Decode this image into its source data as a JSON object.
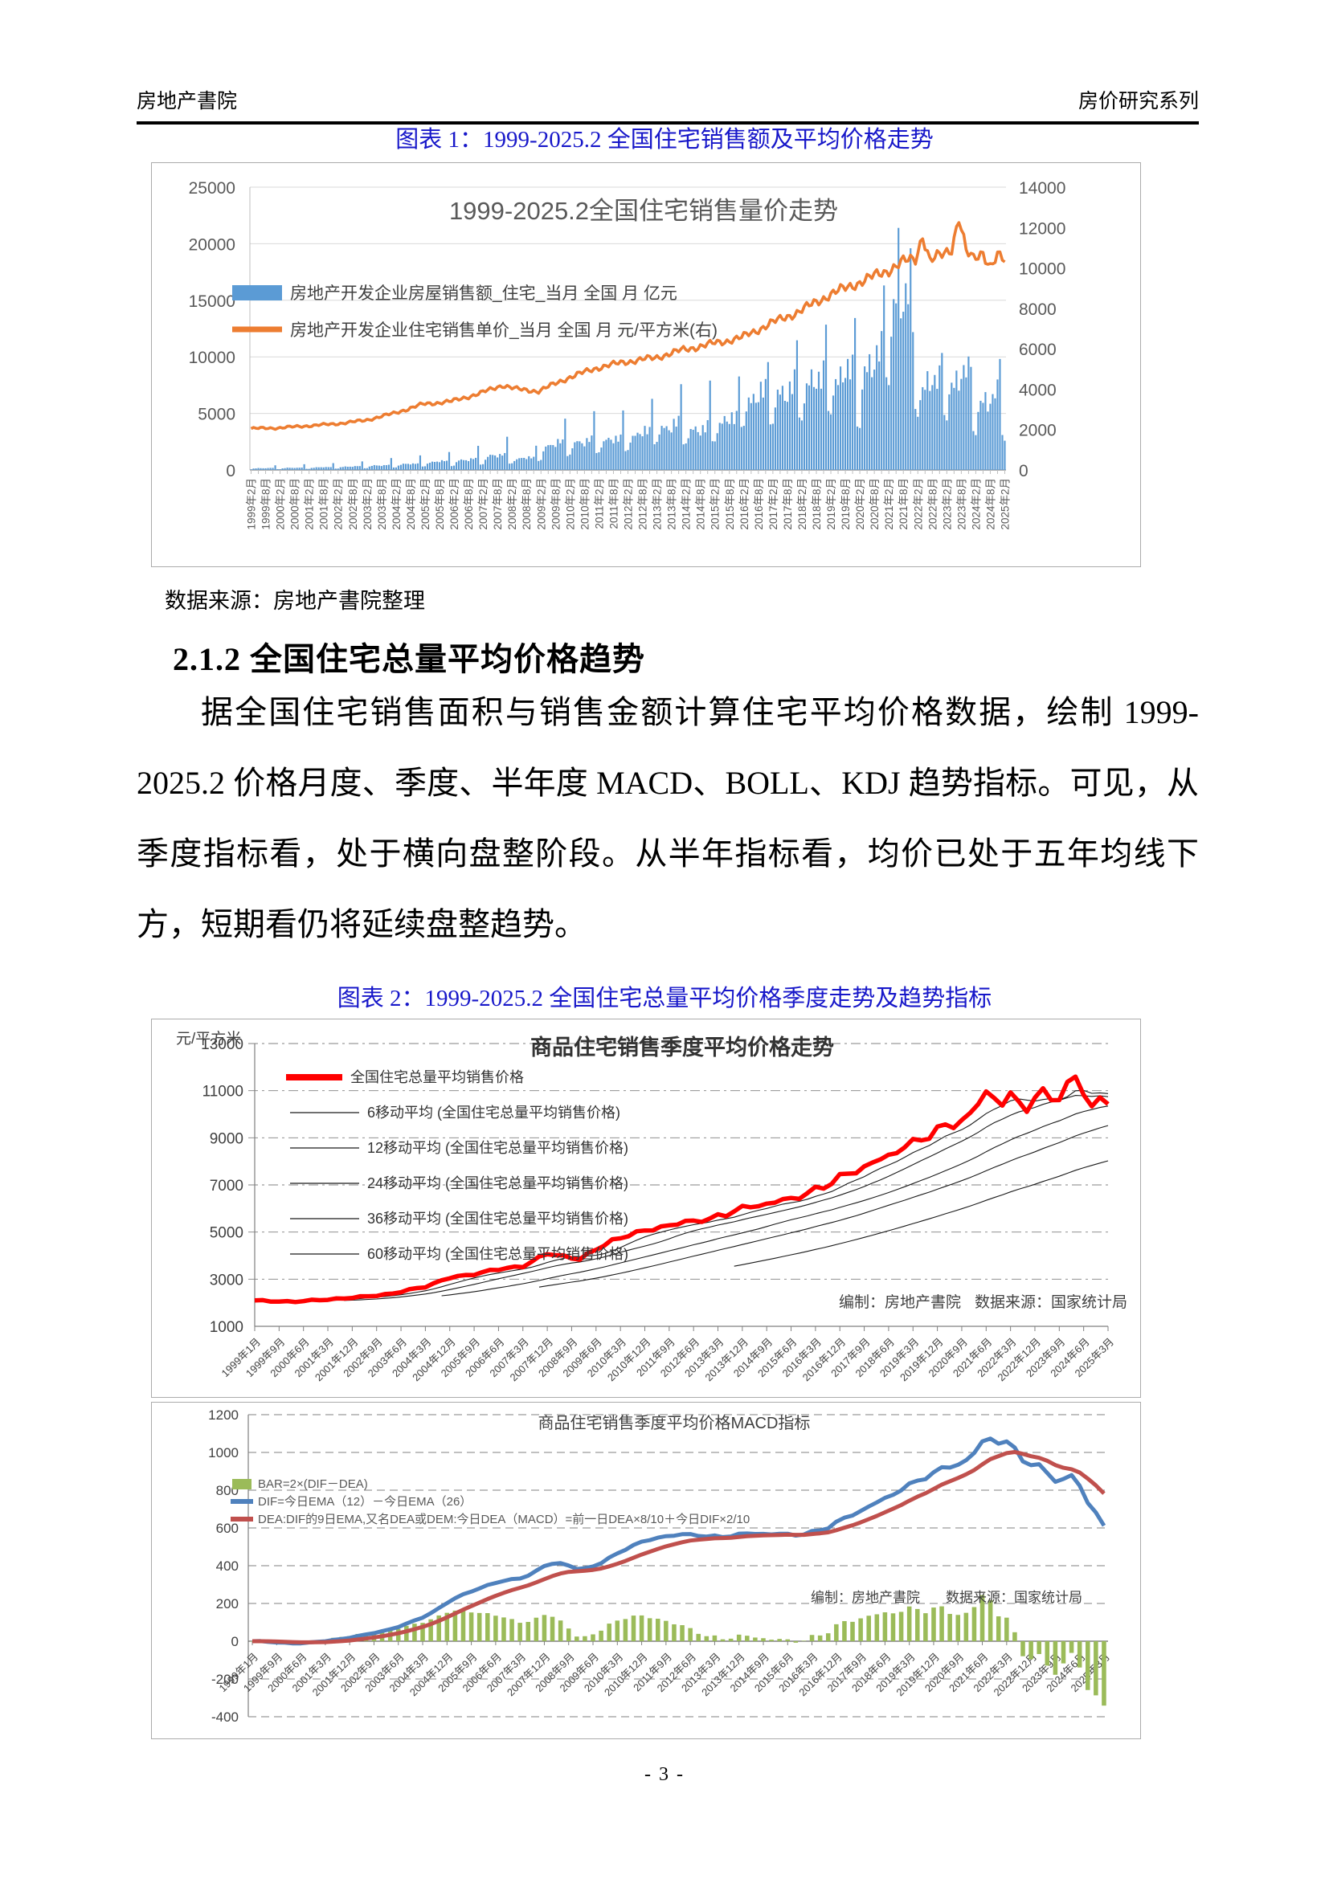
{
  "page": {
    "header_left": "房地产書院",
    "header_right": "房价研究系列",
    "footer_page_number": "- 3 -"
  },
  "figure1": {
    "caption": "图表 1：1999-2025.2 全国住宅销售额及平均价格走势",
    "source_note": "数据来源：房地产書院整理"
  },
  "section": {
    "heading": "2.1.2 全国住宅总量平均价格趋势",
    "paragraph": "据全国住宅销售面积与销售金额计算住宅平均价格数据，绘制 1999-2025.2 价格月度、季度、半年度 MACD、BOLL、KDJ 趋势指标。可见，从季度指标看，处于横向盘整阶段。从半年指标看，均价已处于五年均线下方，短期看仍将延续盘整趋势。"
  },
  "figure2": {
    "caption": "图表 2：1999-2025.2 全国住宅总量平均价格季度走势及趋势指标"
  },
  "chart_data": [
    {
      "id": "monthly-sales-volume-price",
      "type": "bar+line",
      "title": "1999-2025.2全国住宅销售量价走势",
      "months_count": 313,
      "left_axis": {
        "min": 0,
        "max": 25000,
        "ticks": [
          0,
          5000,
          10000,
          15000,
          20000,
          25000
        ]
      },
      "right_axis": {
        "min": 0,
        "max": 14000,
        "ticks": [
          0,
          2000,
          4000,
          6000,
          8000,
          10000,
          12000,
          14000
        ]
      },
      "x_tick_labels": [
        "1999年2月",
        "1999年8月",
        "2000年2月",
        "2000年8月",
        "2001年2月",
        "2001年8月",
        "2002年2月",
        "2002年8月",
        "2003年2月",
        "2003年8月",
        "2004年2月",
        "2004年8月",
        "2005年2月",
        "2005年8月",
        "2006年2月",
        "2006年8月",
        "2007年2月",
        "2007年8月",
        "2008年2月",
        "2008年8月",
        "2009年2月",
        "2009年8月",
        "2010年2月",
        "2010年8月",
        "2011年2月",
        "2011年8月",
        "2012年2月",
        "2012年8月",
        "2013年2月",
        "2013年8月",
        "2014年2月",
        "2014年8月",
        "2015年2月",
        "2015年8月",
        "2016年2月",
        "2016年8月",
        "2017年2月",
        "2017年8月",
        "2018年2月",
        "2018年8月",
        "2019年2月",
        "2019年8月",
        "2020年2月",
        "2020年8月",
        "2021年2月",
        "2021年8月",
        "2022年2月",
        "2022年8月",
        "2023年2月",
        "2023年8月",
        "2024年2月",
        "2024年8月",
        "2025年2月"
      ],
      "bar_series": {
        "label": "房地产开发企业房屋销售额_住宅_当月 全国 月 亿元",
        "color": "#5B9BD5",
        "annual_profile": [
          {
            "year": 1999,
            "feb": 60,
            "jun": 170,
            "dec": 380
          },
          {
            "year": 2000,
            "feb": 75,
            "jun": 200,
            "dec": 460
          },
          {
            "year": 2001,
            "feb": 95,
            "jun": 250,
            "dec": 580
          },
          {
            "year": 2002,
            "feb": 120,
            "jun": 320,
            "dec": 720
          },
          {
            "year": 2003,
            "feb": 160,
            "jun": 420,
            "dec": 950
          },
          {
            "year": 2004,
            "feb": 220,
            "jun": 560,
            "dec": 1200
          },
          {
            "year": 2005,
            "feb": 300,
            "jun": 780,
            "dec": 1550
          },
          {
            "year": 2006,
            "feb": 360,
            "jun": 950,
            "dec": 2000
          },
          {
            "year": 2007,
            "feb": 500,
            "jun": 1350,
            "dec": 2700
          },
          {
            "year": 2008,
            "feb": 550,
            "jun": 1100,
            "dec": 2100
          },
          {
            "year": 2009,
            "feb": 800,
            "jun": 2400,
            "dec": 4500
          },
          {
            "year": 2010,
            "feb": 1300,
            "jun": 2600,
            "dec": 4900
          },
          {
            "year": 2011,
            "feb": 1500,
            "jun": 2800,
            "dec": 5100
          },
          {
            "year": 2012,
            "feb": 1600,
            "jun": 3400,
            "dec": 6500
          },
          {
            "year": 2013,
            "feb": 2300,
            "jun": 4000,
            "dec": 7600
          },
          {
            "year": 2014,
            "feb": 2300,
            "jun": 3700,
            "dec": 7700
          },
          {
            "year": 2015,
            "feb": 2400,
            "jun": 4600,
            "dec": 8600
          },
          {
            "year": 2016,
            "feb": 3600,
            "jun": 6800,
            "dec": 10200
          },
          {
            "year": 2017,
            "feb": 4000,
            "jun": 7200,
            "dec": 11600
          },
          {
            "year": 2018,
            "feb": 4400,
            "jun": 8200,
            "dec": 13200
          },
          {
            "year": 2019,
            "feb": 4700,
            "jun": 8800,
            "dec": 14800
          },
          {
            "year": 2020,
            "feb": 3600,
            "jun": 10000,
            "dec": 17500
          },
          {
            "year": 2021,
            "feb": 7800,
            "jun": 16000,
            "dec": 12500
          },
          {
            "year": 2022,
            "feb": 4800,
            "jun": 8000,
            "dec": 11200
          },
          {
            "year": 2023,
            "feb": 4300,
            "jun": 8500,
            "dec": 10200
          },
          {
            "year": 2024,
            "feb": 3200,
            "jun": 6500,
            "dec": 10300
          },
          {
            "year": 2025,
            "feb": 2800,
            "jun": 2800,
            "dec": 2800
          }
        ],
        "spikes": [
          {
            "index": 268,
            "value": 21400
          }
        ]
      },
      "line_series": {
        "label": "房地产开发企业住宅销售单价_当月 全国 月 元/平方米(右)",
        "color": "#ED7D31",
        "axis": "right",
        "anchors": [
          [
            0,
            2050
          ],
          [
            11,
            2080
          ],
          [
            23,
            2180
          ],
          [
            35,
            2280
          ],
          [
            47,
            2450
          ],
          [
            59,
            2800
          ],
          [
            71,
            3250
          ],
          [
            83,
            3400
          ],
          [
            95,
            3800
          ],
          [
            104,
            4200
          ],
          [
            110,
            4000
          ],
          [
            119,
            3900
          ],
          [
            131,
            4550
          ],
          [
            143,
            5050
          ],
          [
            155,
            5350
          ],
          [
            167,
            5550
          ],
          [
            179,
            5950
          ],
          [
            191,
            6250
          ],
          [
            203,
            6550
          ],
          [
            215,
            7250
          ],
          [
            227,
            7850
          ],
          [
            239,
            8650
          ],
          [
            251,
            9250
          ],
          [
            263,
            9850
          ],
          [
            270,
            10300
          ],
          [
            275,
            10450
          ],
          [
            278,
            11650
          ],
          [
            281,
            10350
          ],
          [
            287,
            10700
          ],
          [
            290,
            11000
          ],
          [
            293,
            12550
          ],
          [
            296,
            10800
          ],
          [
            299,
            10400
          ],
          [
            303,
            10800
          ],
          [
            306,
            10100
          ],
          [
            309,
            10600
          ],
          [
            312,
            10300
          ]
        ]
      }
    },
    {
      "id": "quarterly-avg-price-trend",
      "type": "line",
      "title": "商品住宅销售季度平均价格走势",
      "y_unit": "元/平方米",
      "y_ticks": [
        1000,
        3000,
        5000,
        7000,
        9000,
        11000,
        13000
      ],
      "points_count": 106,
      "x_tick_labels": [
        "1999年1月",
        "1999年9月",
        "2000年6月",
        "2001年3月",
        "2001年12月",
        "2002年9月",
        "2003年6月",
        "2004年3月",
        "2004年12月",
        "2005年9月",
        "2006年6月",
        "2007年3月",
        "2007年12月",
        "2008年9月",
        "2009年6月",
        "2010年3月",
        "2010年12月",
        "2011年9月",
        "2012年6月",
        "2013年3月",
        "2013年12月",
        "2014年9月",
        "2015年6月",
        "2016年3月",
        "2016年12月",
        "2017年9月",
        "2018年6月",
        "2019年3月",
        "2019年12月",
        "2020年9月",
        "2021年6月",
        "2022年3月",
        "2022年12月",
        "2023年9月",
        "2024年6月",
        "2025年3月"
      ],
      "annotation_maker": "编制：房地产書院",
      "annotation_source": "数据来源：国家统计局",
      "legend": [
        {
          "label": "全国住宅总量平均销售价格",
          "color": "#FF0000",
          "type": "thick-line"
        },
        {
          "label": "6移动平均 (全国住宅总量平均销售价格)",
          "color": "#1a1a1a",
          "type": "thin-line"
        },
        {
          "label": "12移动平均 (全国住宅总量平均销售价格)",
          "color": "#1a1a1a",
          "type": "thin-line"
        },
        {
          "label": "24移动平均 (全国住宅总量平均销售价格)",
          "color": "#1a1a1a",
          "type": "thin-line"
        },
        {
          "label": "36移动平均 (全国住宅总量平均销售价格)",
          "color": "#1a1a1a",
          "type": "thin-line"
        },
        {
          "label": "60移动平均 (全国住宅总量平均销售价格)",
          "color": "#1a1a1a",
          "type": "thin-line"
        }
      ],
      "ma_windows": [
        6,
        12,
        24,
        36,
        60
      ],
      "price_anchors": [
        [
          0,
          2100
        ],
        [
          2,
          2060
        ],
        [
          5,
          2050
        ],
        [
          9,
          2140
        ],
        [
          13,
          2240
        ],
        [
          17,
          2390
        ],
        [
          21,
          2690
        ],
        [
          24,
          3060
        ],
        [
          26,
          3160
        ],
        [
          29,
          3360
        ],
        [
          33,
          3560
        ],
        [
          36,
          4080
        ],
        [
          38,
          3980
        ],
        [
          40,
          3850
        ],
        [
          44,
          4660
        ],
        [
          48,
          5060
        ],
        [
          52,
          5360
        ],
        [
          56,
          5560
        ],
        [
          60,
          6010
        ],
        [
          64,
          6260
        ],
        [
          68,
          6610
        ],
        [
          72,
          7310
        ],
        [
          76,
          7910
        ],
        [
          80,
          8610
        ],
        [
          84,
          9310
        ],
        [
          88,
          9910
        ],
        [
          90,
          11000
        ],
        [
          92,
          10400
        ],
        [
          93,
          10800
        ],
        [
          95,
          10300
        ],
        [
          97,
          10900
        ],
        [
          99,
          10700
        ],
        [
          101,
          11600
        ],
        [
          103,
          10300
        ],
        [
          104,
          10700
        ],
        [
          105,
          10400
        ]
      ]
    },
    {
      "id": "quarterly-price-macd",
      "type": "bar+line",
      "title": "商品住宅销售季度平均价格MACD指标",
      "y_ticks": [
        -400,
        -200,
        0,
        200,
        400,
        600,
        800,
        1000,
        1200
      ],
      "x_tick_labels": [
        "1999年1月",
        "1999年9月",
        "2000年6月",
        "2001年3月",
        "2001年12月",
        "2002年9月",
        "2003年6月",
        "2004年3月",
        "2004年12月",
        "2005年9月",
        "2006年6月",
        "2007年3月",
        "2007年12月",
        "2008年9月",
        "2009年6月",
        "2010年3月",
        "2010年12月",
        "2011年9月",
        "2012年6月",
        "2013年3月",
        "2013年12月",
        "2014年9月",
        "2015年6月",
        "2016年3月",
        "2016年12月",
        "2017年9月",
        "2018年6月",
        "2019年3月",
        "2019年12月",
        "2020年9月",
        "2021年6月",
        "2022年3月",
        "2022年12月",
        "2023年9月",
        "2024年6月",
        "2025年3月"
      ],
      "annotation_maker": "编制：房地产書院",
      "annotation_source": "数据来源：国家统计局",
      "legend": [
        {
          "label": "BAR=2×(DIF－DEA)",
          "color": "#9BBB59",
          "type": "bar"
        },
        {
          "label": "DIF=今日EMA（12）－今日EMA（26）",
          "color": "#4F81BD",
          "type": "line"
        },
        {
          "label": "DEA:DIF的9日EMA,又名DEA或DEM:今日DEA（MACD）=前一日DEA×8/10＋今日DIF×2/10",
          "color": "#C0504D",
          "type": "line"
        }
      ],
      "params": {
        "ema_fast": 12,
        "ema_slow": 26,
        "dea": 9
      },
      "derived_from": "quarterly-avg-price-trend"
    }
  ]
}
